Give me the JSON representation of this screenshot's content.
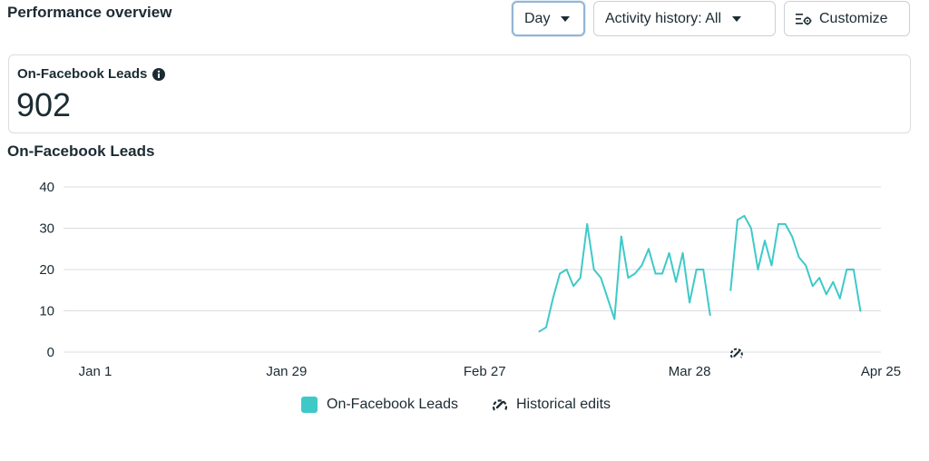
{
  "header": {
    "title": "Performance overview",
    "day_button": "Day",
    "activity_button": "Activity history: All",
    "customize_button": "Customize"
  },
  "summary_card": {
    "label": "On-Facebook Leads",
    "value": "902"
  },
  "chart_title": "On-Facebook Leads",
  "colors": {
    "series": "#3ec9c9",
    "grid": "#dadde1",
    "text": "#1c2b33"
  },
  "legend": {
    "series_label": "On-Facebook Leads",
    "edits_label": "Historical edits",
    "edits_icon": "historical-edits-icon"
  },
  "chart_data": {
    "type": "line",
    "title": "On-Facebook Leads",
    "xlabel": "",
    "ylabel": "",
    "ylim": [
      0,
      40
    ],
    "yticks": [
      0,
      10,
      20,
      30,
      40
    ],
    "xlim": [
      "2024-01-01",
      "2024-04-25"
    ],
    "xticks": [
      {
        "date": "2024-01-01",
        "label": "Jan 1"
      },
      {
        "date": "2024-01-29",
        "label": "Jan 29"
      },
      {
        "date": "2024-02-27",
        "label": "Feb 27"
      },
      {
        "date": "2024-03-28",
        "label": "Mar 28"
      },
      {
        "date": "2024-04-25",
        "label": "Apr 25"
      }
    ],
    "grid": true,
    "legend_position": "bottom",
    "historical_edit_markers": [
      "2024-04-04"
    ],
    "series": [
      {
        "name": "On-Facebook Leads",
        "segments": [
          [
            {
              "x": "2024-03-06",
              "y": 5
            },
            {
              "x": "2024-03-07",
              "y": 6
            },
            {
              "x": "2024-03-08",
              "y": 13
            },
            {
              "x": "2024-03-09",
              "y": 19
            },
            {
              "x": "2024-03-10",
              "y": 20
            },
            {
              "x": "2024-03-11",
              "y": 16
            },
            {
              "x": "2024-03-12",
              "y": 18
            },
            {
              "x": "2024-03-13",
              "y": 31
            },
            {
              "x": "2024-03-14",
              "y": 20
            },
            {
              "x": "2024-03-15",
              "y": 18
            },
            {
              "x": "2024-03-16",
              "y": 13
            },
            {
              "x": "2024-03-17",
              "y": 8
            },
            {
              "x": "2024-03-18",
              "y": 28
            },
            {
              "x": "2024-03-19",
              "y": 18
            },
            {
              "x": "2024-03-20",
              "y": 19
            },
            {
              "x": "2024-03-21",
              "y": 21
            },
            {
              "x": "2024-03-22",
              "y": 25
            },
            {
              "x": "2024-03-23",
              "y": 19
            },
            {
              "x": "2024-03-24",
              "y": 19
            },
            {
              "x": "2024-03-25",
              "y": 24
            },
            {
              "x": "2024-03-26",
              "y": 17
            },
            {
              "x": "2024-03-27",
              "y": 24
            },
            {
              "x": "2024-03-28",
              "y": 12
            },
            {
              "x": "2024-03-29",
              "y": 20
            },
            {
              "x": "2024-03-30",
              "y": 20
            },
            {
              "x": "2024-03-31",
              "y": 9
            }
          ],
          [
            {
              "x": "2024-04-03",
              "y": 15
            },
            {
              "x": "2024-04-04",
              "y": 32
            },
            {
              "x": "2024-04-05",
              "y": 33
            },
            {
              "x": "2024-04-06",
              "y": 30
            },
            {
              "x": "2024-04-07",
              "y": 20
            },
            {
              "x": "2024-04-08",
              "y": 27
            },
            {
              "x": "2024-04-09",
              "y": 21
            },
            {
              "x": "2024-04-10",
              "y": 31
            },
            {
              "x": "2024-04-11",
              "y": 31
            },
            {
              "x": "2024-04-12",
              "y": 28
            },
            {
              "x": "2024-04-13",
              "y": 23
            },
            {
              "x": "2024-04-14",
              "y": 21
            },
            {
              "x": "2024-04-15",
              "y": 16
            },
            {
              "x": "2024-04-16",
              "y": 18
            },
            {
              "x": "2024-04-17",
              "y": 14
            },
            {
              "x": "2024-04-18",
              "y": 17
            },
            {
              "x": "2024-04-19",
              "y": 13
            },
            {
              "x": "2024-04-20",
              "y": 20
            },
            {
              "x": "2024-04-21",
              "y": 20
            },
            {
              "x": "2024-04-22",
              "y": 10
            }
          ]
        ]
      }
    ]
  }
}
